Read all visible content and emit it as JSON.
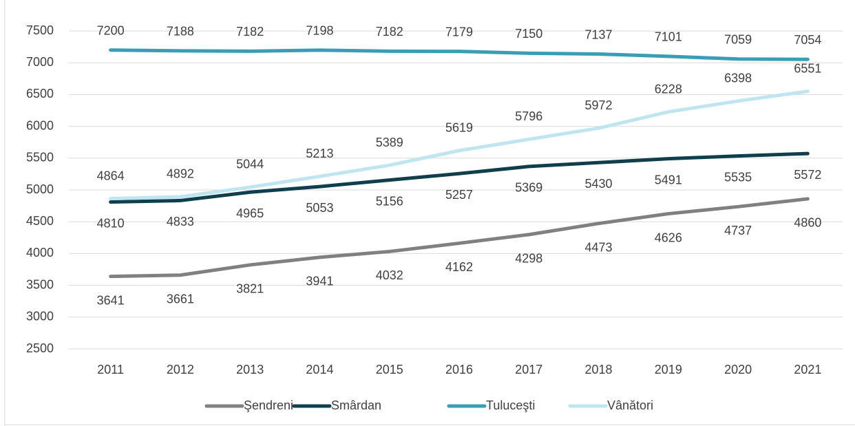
{
  "chart_data": {
    "type": "line",
    "categories": [
      "2011",
      "2012",
      "2013",
      "2014",
      "2015",
      "2016",
      "2017",
      "2018",
      "2019",
      "2020",
      "2021"
    ],
    "series": [
      {
        "name": "Şendreni",
        "color": "#808080",
        "values": [
          3641,
          3661,
          3821,
          3941,
          4032,
          4162,
          4298,
          4473,
          4626,
          4737,
          4860
        ]
      },
      {
        "name": "Smârdan",
        "color": "#0f3f4c",
        "values": [
          4810,
          4833,
          4965,
          5053,
          5156,
          5257,
          5369,
          5430,
          5491,
          5535,
          5572
        ]
      },
      {
        "name": "Tuluceşti",
        "color": "#3a9db6",
        "values": [
          7200,
          7188,
          7182,
          7198,
          7182,
          7179,
          7150,
          7137,
          7101,
          7059,
          7054
        ]
      },
      {
        "name": "Vânători",
        "color": "#bfe6f0",
        "values": [
          4864,
          4892,
          5044,
          5213,
          5389,
          5619,
          5796,
          5972,
          6228,
          6398,
          6551
        ]
      }
    ],
    "ylim": [
      2500,
      7500
    ],
    "yticks": [
      2500,
      3000,
      3500,
      4000,
      4500,
      5000,
      5500,
      6000,
      6500,
      7000,
      7500
    ],
    "grid": true,
    "legend": "bottom"
  }
}
